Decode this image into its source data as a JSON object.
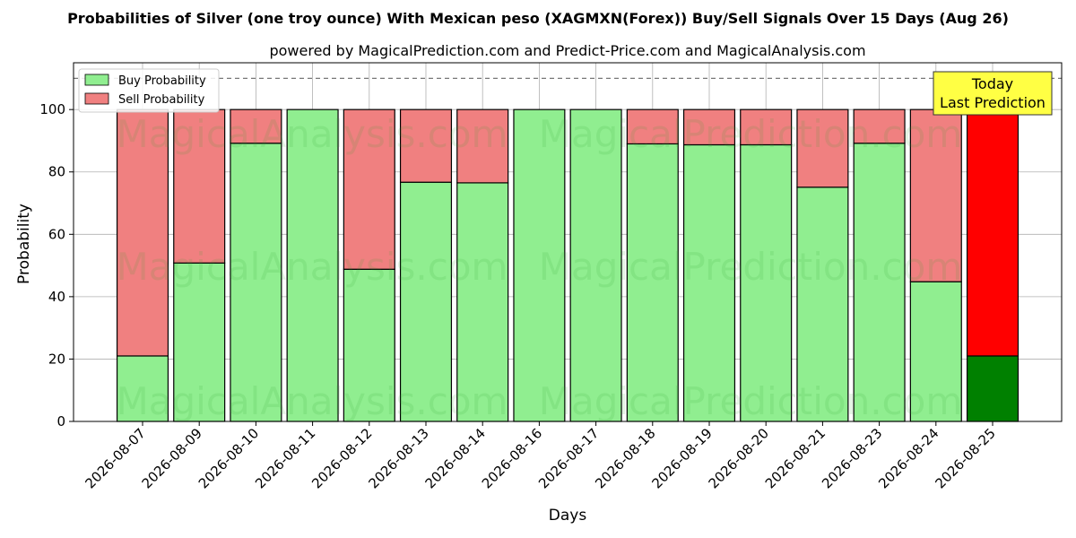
{
  "chart_data": {
    "type": "bar",
    "stacked": true,
    "title": "Probabilities of Silver (one troy ounce) With Mexican peso (XAGMXN(Forex)) Buy/Sell Signals Over 15 Days (Aug 26)",
    "subtitle": "powered by MagicalPrediction.com and Predict-Price.com and MagicalAnalysis.com",
    "xlabel": "Days",
    "ylabel": "Probability",
    "ylim": [
      0,
      115
    ],
    "yticks": [
      0,
      20,
      40,
      60,
      80,
      100
    ],
    "reference_line": 110,
    "grid": true,
    "legend_position": "top-left",
    "categories": [
      "2026-08-07",
      "2026-08-09",
      "2026-08-10",
      "2026-08-11",
      "2026-08-12",
      "2026-08-13",
      "2026-08-14",
      "2026-08-16",
      "2026-08-17",
      "2026-08-18",
      "2026-08-19",
      "2026-08-20",
      "2026-08-21",
      "2026-08-23",
      "2026-08-24",
      "2026-08-25"
    ],
    "series": [
      {
        "name": "Buy Probability",
        "color": "#90ee90",
        "highlight_color": "#008000",
        "values": [
          21.0,
          50.8,
          89.2,
          100.0,
          48.8,
          76.7,
          76.5,
          100.0,
          100.0,
          89.0,
          88.7,
          88.7,
          75.1,
          89.2,
          44.8,
          21.0
        ]
      },
      {
        "name": "Sell Probability",
        "color": "#f08080",
        "highlight_color": "#ff0000",
        "values": [
          79.0,
          49.2,
          10.8,
          0.0,
          51.2,
          23.3,
          23.5,
          0.0,
          0.0,
          11.0,
          11.3,
          11.3,
          24.9,
          10.8,
          55.2,
          79.0
        ]
      }
    ],
    "annotation": {
      "lines": [
        "Today",
        "Last Prediction"
      ],
      "category_index": 15,
      "background": "#ffff44"
    },
    "watermarks": [
      "MagicalAnalysis.com",
      "MagicalPrediction.com"
    ]
  }
}
